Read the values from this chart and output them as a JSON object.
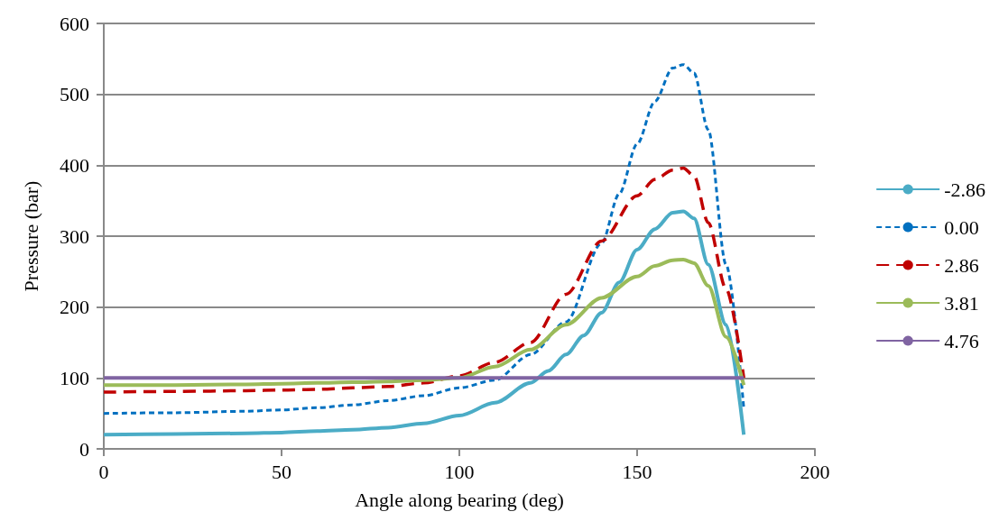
{
  "chart_data": {
    "type": "line",
    "xlabel": "Angle along bearing (deg)",
    "ylabel": "Pressure (bar)",
    "xlim": [
      0,
      200
    ],
    "xticks": [
      0,
      50,
      100,
      150,
      200
    ],
    "ylim": [
      0,
      600
    ],
    "yticks": [
      0,
      100,
      200,
      300,
      400,
      500,
      600
    ],
    "grid": "y",
    "legend": "right",
    "marker": "none",
    "series": [
      {
        "name": "-2.86",
        "color": "#4bacc6",
        "line_style": "solid",
        "x": [
          0,
          20,
          40,
          50,
          60,
          70,
          80,
          90,
          100,
          110,
          120,
          125,
          130,
          135,
          140,
          145,
          150,
          155,
          160,
          163,
          166,
          170,
          175,
          180
        ],
        "values": [
          20,
          21,
          22,
          23,
          25,
          27,
          30,
          36,
          47,
          65,
          93,
          110,
          133,
          160,
          192,
          235,
          281,
          310,
          333,
          335,
          325,
          260,
          175,
          20
        ]
      },
      {
        "name": "0.00",
        "color": "#0070c0",
        "line_style": "dotted",
        "x": [
          0,
          20,
          40,
          50,
          60,
          70,
          80,
          90,
          100,
          110,
          120,
          130,
          140,
          145,
          150,
          155,
          160,
          163,
          166,
          170,
          175,
          180
        ],
        "values": [
          50,
          51,
          53,
          55,
          58,
          62,
          68,
          75,
          86,
          97,
          133,
          179,
          290,
          360,
          430,
          490,
          537,
          542,
          530,
          450,
          260,
          57
        ]
      },
      {
        "name": "2.86",
        "color": "#c00000",
        "line_style": "dashed",
        "x": [
          0,
          20,
          40,
          50,
          60,
          70,
          80,
          90,
          100,
          110,
          120,
          130,
          140,
          150,
          155,
          160,
          163,
          166,
          170,
          175,
          180
        ],
        "values": [
          80,
          81,
          82,
          83,
          84,
          86,
          88,
          93,
          103,
          122,
          150,
          218,
          293,
          357,
          380,
          393,
          396,
          385,
          319,
          226,
          100
        ]
      },
      {
        "name": "3.81",
        "color": "#9bbb59",
        "line_style": "solid",
        "x": [
          0,
          20,
          40,
          50,
          60,
          70,
          80,
          90,
          100,
          110,
          120,
          130,
          140,
          150,
          155,
          160,
          163,
          166,
          170,
          175,
          180
        ],
        "values": [
          90,
          90,
          91,
          92,
          93,
          94,
          95,
          97,
          100,
          116,
          140,
          175,
          213,
          243,
          258,
          266,
          267,
          262,
          230,
          158,
          90
        ]
      },
      {
        "name": "4.76",
        "color": "#8064a2",
        "line_style": "solid",
        "x": [
          0,
          180
        ],
        "values": [
          100,
          100
        ]
      }
    ]
  }
}
